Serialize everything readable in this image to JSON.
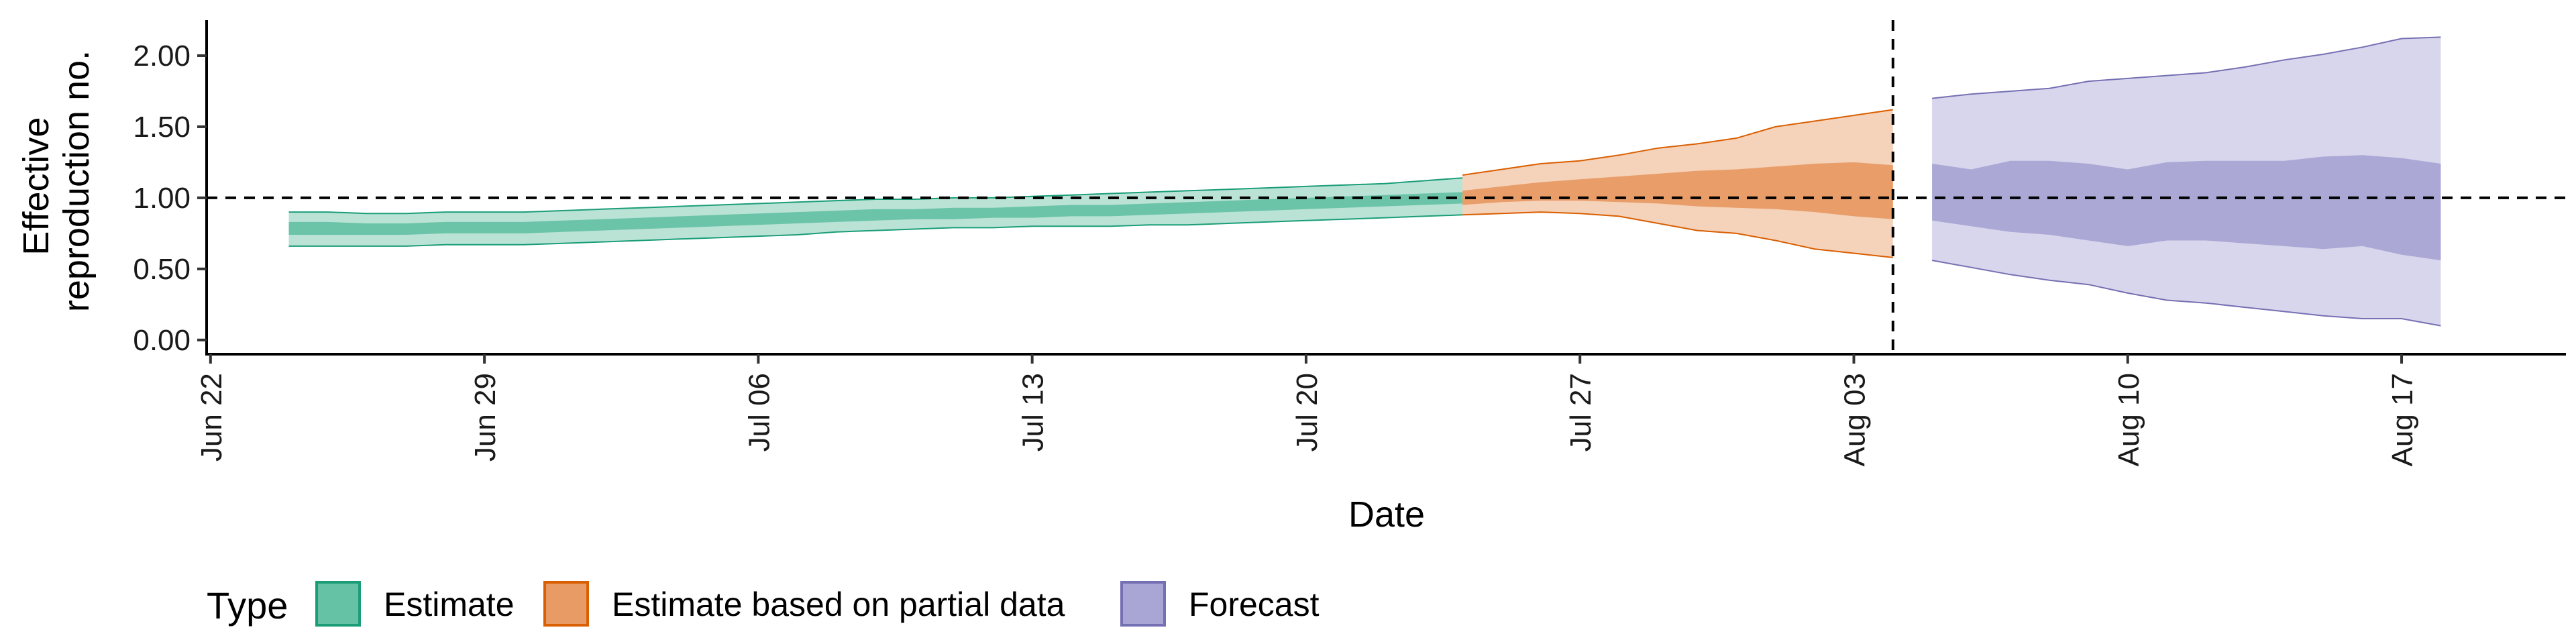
{
  "chart_data": {
    "type": "area",
    "xlabel": "Date",
    "ylabel": [
      "Effective",
      "reproduction no."
    ],
    "x_ticks": [
      "Jun 22",
      "Jun 29",
      "Jul 06",
      "Jul 13",
      "Jul 20",
      "Jul 27",
      "Aug 03",
      "Aug 10",
      "Aug 17"
    ],
    "x_tick_days": [
      0,
      7,
      14,
      21,
      28,
      35,
      42,
      49,
      56
    ],
    "x_range_days": [
      -0.1,
      60.2
    ],
    "y_ticks": [
      "0.00",
      "0.50",
      "1.00",
      "1.50",
      "2.00"
    ],
    "y_tick_values": [
      0,
      0.5,
      1,
      1.5,
      2
    ],
    "ylim": [
      -0.1,
      2.25
    ],
    "reference_line_y": 1.0,
    "reference_line_x": "Aug 04",
    "grid": false,
    "legend_title": "Type",
    "legend_position": "bottom",
    "series": [
      {
        "name": "Estimate",
        "color": "#1b9e77",
        "fill": "#66c2a5",
        "x_start": "Jun 24",
        "x_end": "Jul 24",
        "outer_lower": [
          0.66,
          0.66,
          0.66,
          0.66,
          0.67,
          0.67,
          0.67,
          0.68,
          0.69,
          0.7,
          0.71,
          0.72,
          0.73,
          0.74,
          0.76,
          0.77,
          0.78,
          0.79,
          0.79,
          0.8,
          0.8,
          0.8,
          0.81,
          0.81,
          0.82,
          0.83,
          0.84,
          0.85,
          0.86,
          0.87,
          0.88
        ],
        "outer_upper": [
          0.9,
          0.9,
          0.89,
          0.89,
          0.9,
          0.9,
          0.9,
          0.91,
          0.92,
          0.93,
          0.94,
          0.95,
          0.96,
          0.97,
          0.98,
          0.99,
          0.99,
          1.0,
          1.0,
          1.01,
          1.02,
          1.03,
          1.04,
          1.05,
          1.06,
          1.07,
          1.08,
          1.09,
          1.1,
          1.12,
          1.14
        ],
        "inner_lower": [
          0.74,
          0.74,
          0.74,
          0.74,
          0.75,
          0.75,
          0.75,
          0.76,
          0.77,
          0.78,
          0.79,
          0.8,
          0.81,
          0.82,
          0.83,
          0.84,
          0.85,
          0.85,
          0.86,
          0.86,
          0.87,
          0.87,
          0.88,
          0.89,
          0.9,
          0.91,
          0.92,
          0.93,
          0.94,
          0.95,
          0.96
        ],
        "inner_upper": [
          0.83,
          0.83,
          0.82,
          0.82,
          0.83,
          0.83,
          0.83,
          0.84,
          0.85,
          0.86,
          0.87,
          0.88,
          0.89,
          0.9,
          0.91,
          0.92,
          0.92,
          0.93,
          0.93,
          0.94,
          0.95,
          0.95,
          0.96,
          0.97,
          0.98,
          0.99,
          1.0,
          1.01,
          1.02,
          1.03,
          1.04
        ]
      },
      {
        "name": "Estimate based on partial data",
        "color": "#d95f02",
        "fill": "#e89b65",
        "x_start": "Jul 24",
        "x_end": "Aug 04",
        "outer_lower": [
          0.88,
          0.89,
          0.9,
          0.89,
          0.87,
          0.82,
          0.77,
          0.75,
          0.7,
          0.64,
          0.61,
          0.58
        ],
        "outer_upper": [
          1.16,
          1.2,
          1.24,
          1.26,
          1.3,
          1.35,
          1.38,
          1.42,
          1.5,
          1.54,
          1.58,
          1.62
        ],
        "inner_lower": [
          0.95,
          0.97,
          0.98,
          0.98,
          0.97,
          0.96,
          0.94,
          0.93,
          0.92,
          0.9,
          0.87,
          0.85
        ],
        "inner_upper": [
          1.05,
          1.08,
          1.11,
          1.13,
          1.15,
          1.17,
          1.19,
          1.2,
          1.22,
          1.24,
          1.25,
          1.23
        ]
      },
      {
        "name": "Forecast",
        "color": "#7570b3",
        "fill": "#a9a5d5",
        "x_start": "Aug 05",
        "x_end": "Aug 18",
        "outer_lower": [
          0.56,
          0.51,
          0.46,
          0.42,
          0.39,
          0.33,
          0.28,
          0.26,
          0.23,
          0.2,
          0.17,
          0.15,
          0.15,
          0.1
        ],
        "outer_upper": [
          1.7,
          1.73,
          1.75,
          1.77,
          1.82,
          1.84,
          1.86,
          1.88,
          1.92,
          1.97,
          2.01,
          2.06,
          2.12,
          2.13
        ],
        "inner_lower": [
          0.84,
          0.8,
          0.76,
          0.74,
          0.7,
          0.66,
          0.7,
          0.7,
          0.68,
          0.66,
          0.64,
          0.66,
          0.6,
          0.56
        ],
        "inner_upper": [
          1.24,
          1.2,
          1.26,
          1.26,
          1.24,
          1.2,
          1.25,
          1.26,
          1.26,
          1.26,
          1.29,
          1.3,
          1.28,
          1.24
        ]
      }
    ]
  }
}
